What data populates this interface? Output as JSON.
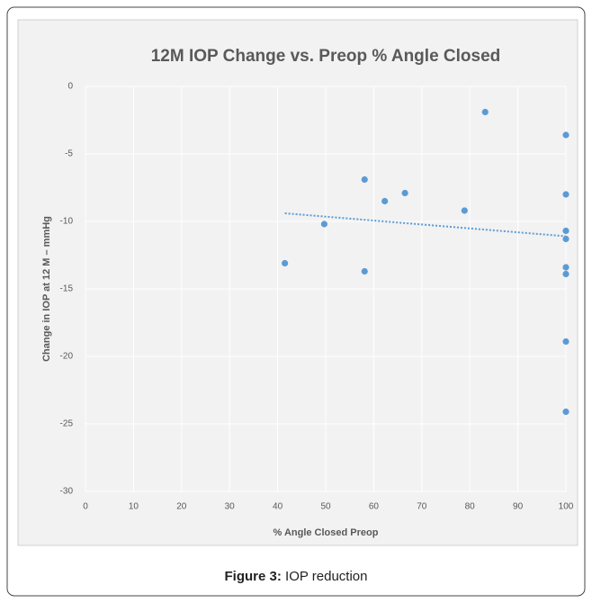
{
  "chart_data": {
    "type": "scatter",
    "title": "12M IOP Change vs. Preop % Angle Closed",
    "xlabel": "% Angle Closed Preop",
    "ylabel": "Change in IOP at 12 M – mmHg",
    "x": [
      41.5,
      49.7,
      58.1,
      58.1,
      62.3,
      66.5,
      78.9,
      83.2,
      100,
      100,
      100,
      100,
      100,
      100,
      100,
      100
    ],
    "values": [
      -13.1,
      -10.2,
      -6.9,
      -13.7,
      -8.5,
      -7.9,
      -9.2,
      -1.9,
      -3.6,
      -8.0,
      -10.7,
      -11.3,
      -13.4,
      -13.9,
      -18.9,
      -24.1
    ],
    "color": "#5b9bd5",
    "trendline": {
      "x": [
        41.5,
        100
      ],
      "values": [
        -9.4,
        -11.1
      ]
    },
    "xlim": [
      0,
      100
    ],
    "xticks": [
      0,
      10,
      20,
      30,
      40,
      50,
      60,
      70,
      80,
      90,
      100
    ],
    "ylim": [
      -30,
      0
    ],
    "yticks": [
      0,
      -5,
      -10,
      -15,
      -20,
      -25,
      -30
    ],
    "grid": true
  },
  "caption": {
    "label": "Figure 3:",
    "text": "IOP reduction"
  }
}
